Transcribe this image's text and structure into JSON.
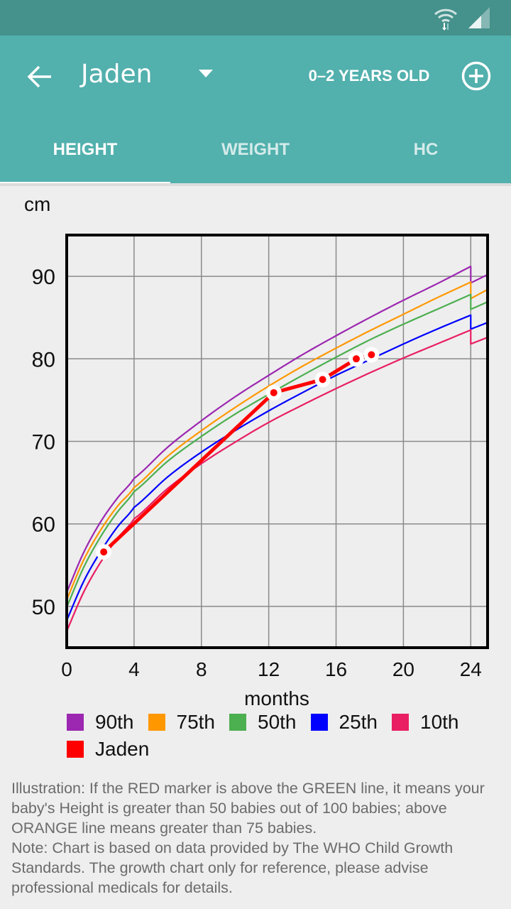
{
  "status_bar": {
    "icons": [
      "wifi-icon",
      "signal-icon"
    ]
  },
  "header": {
    "back_icon": "arrow-left-icon",
    "title": "Jaden",
    "dropdown_icon": "caret-down-icon",
    "age_range": "0–2 YEARS OLD",
    "add_icon": "add-circle-icon"
  },
  "tabs": [
    {
      "label": "HEIGHT",
      "active": true
    },
    {
      "label": "WEIGHT",
      "active": false
    },
    {
      "label": "HC",
      "active": false
    }
  ],
  "colors": {
    "appbar": "#52b0ad",
    "statusbar": "#45918c",
    "p90": "#9c27b0",
    "p75": "#ff9800",
    "p50": "#4caf50",
    "p25": "#0000ff",
    "p10": "#e91e63",
    "child": "#ff0000"
  },
  "chart_data": {
    "type": "line",
    "title": "",
    "ylabel": "cm",
    "xlabel": "months",
    "xlim": [
      0,
      25
    ],
    "ylim": [
      45,
      95
    ],
    "x_ticks": [
      0,
      4,
      8,
      12,
      16,
      20,
      24
    ],
    "y_ticks": [
      50,
      60,
      70,
      80,
      90
    ],
    "grid": true,
    "legend_position": "bottom",
    "series": [
      {
        "name": "90th",
        "color": "#9c27b0",
        "x": [
          0,
          1,
          2,
          3,
          4,
          6,
          8,
          10,
          12,
          14,
          16,
          18,
          20,
          22,
          24,
          24,
          25
        ],
        "y": [
          51.7,
          56.5,
          60.2,
          63.1,
          65.5,
          69.3,
          72.5,
          75.4,
          78.0,
          80.5,
          82.8,
          85.0,
          87.1,
          89.1,
          91.2,
          89.2,
          90.2
        ]
      },
      {
        "name": "75th",
        "color": "#ff9800",
        "x": [
          0,
          1,
          2,
          3,
          4,
          6,
          8,
          10,
          12,
          14,
          16,
          18,
          20,
          22,
          24,
          24,
          25
        ],
        "y": [
          50.8,
          55.6,
          59.2,
          62.1,
          64.4,
          68.2,
          71.3,
          74.1,
          76.7,
          79.1,
          81.3,
          83.4,
          85.4,
          87.4,
          89.3,
          87.3,
          88.4
        ]
      },
      {
        "name": "50th",
        "color": "#4caf50",
        "x": [
          0,
          1,
          2,
          3,
          4,
          6,
          8,
          10,
          12,
          14,
          16,
          18,
          20,
          22,
          24,
          24,
          25
        ],
        "y": [
          49.9,
          54.7,
          58.4,
          61.4,
          63.9,
          67.6,
          70.6,
          73.3,
          75.7,
          78.0,
          80.2,
          82.3,
          84.2,
          86.0,
          87.8,
          86.0,
          86.9
        ]
      },
      {
        "name": "25th",
        "color": "#0000ff",
        "x": [
          0,
          1,
          2,
          3,
          4,
          6,
          8,
          10,
          12,
          14,
          16,
          18,
          20,
          22,
          24,
          24,
          25
        ],
        "y": [
          48.3,
          53.0,
          56.6,
          59.6,
          62.0,
          65.7,
          68.7,
          71.3,
          73.7,
          75.9,
          78.0,
          79.9,
          81.8,
          83.6,
          85.3,
          83.6,
          84.4
        ]
      },
      {
        "name": "10th",
        "color": "#e91e63",
        "x": [
          0,
          1,
          2,
          3,
          4,
          6,
          8,
          10,
          12,
          14,
          16,
          18,
          20,
          22,
          24,
          24,
          25
        ],
        "y": [
          47.0,
          51.7,
          55.3,
          58.2,
          60.6,
          64.3,
          67.3,
          69.9,
          72.3,
          74.4,
          76.4,
          78.3,
          80.1,
          81.8,
          83.5,
          81.8,
          82.6
        ]
      },
      {
        "name": "Jaden",
        "color": "#ff0000",
        "x": [
          2.2,
          12.3,
          15.2,
          17.2,
          18.1
        ],
        "y": [
          56.6,
          75.9,
          77.5,
          80.0,
          80.5
        ],
        "markers": true
      }
    ]
  },
  "legend": [
    {
      "label": "90th",
      "color": "#9c27b0"
    },
    {
      "label": "75th",
      "color": "#ff9800"
    },
    {
      "label": "50th",
      "color": "#4caf50"
    },
    {
      "label": "25th",
      "color": "#0000ff"
    },
    {
      "label": "10th",
      "color": "#e91e63"
    },
    {
      "label": "Jaden",
      "color": "#ff0000"
    }
  ],
  "note": {
    "illustration": "Illustration: If the RED marker is above the GREEN line, it means your baby's Height is greater than 50 babies out of 100 babies; above ORANGE line means greater than 75 babies.",
    "disclaimer": "Note: Chart is based on data provided by The WHO Child Growth Standards. The growth chart only for reference, please advise professional medicals for details."
  }
}
